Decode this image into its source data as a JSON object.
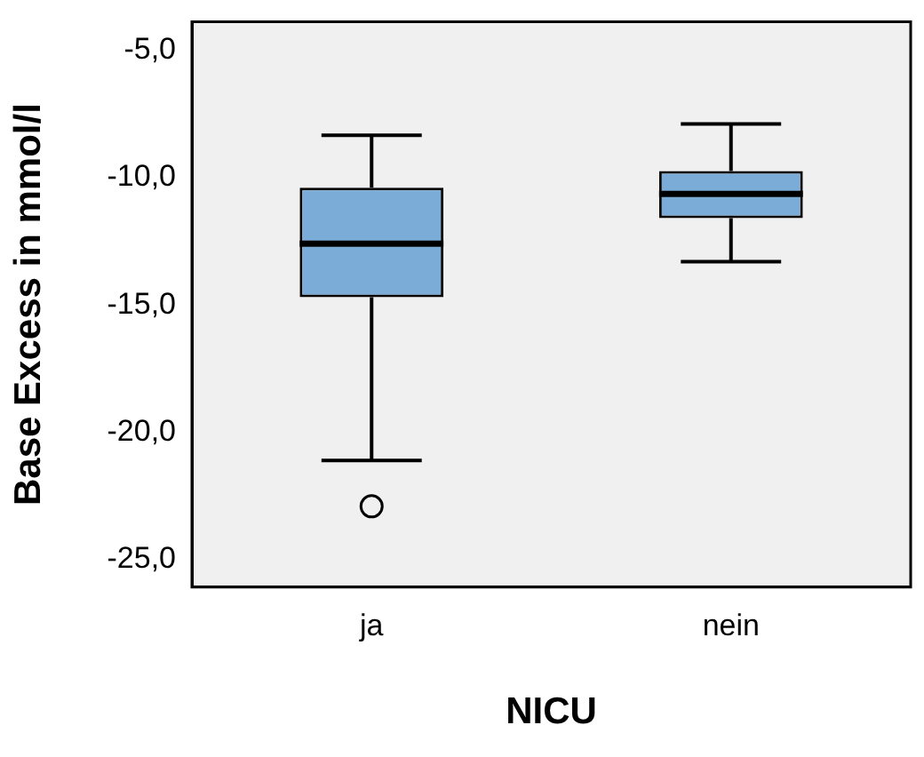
{
  "chart_data": {
    "type": "box",
    "xlabel": "NICU",
    "ylabel": "Base Excess in mmol/l",
    "categories": [
      "ja",
      "nein"
    ],
    "color": "#7bacd8",
    "grid": false,
    "legend": false,
    "ylim": [
      -26.07,
      -3.89
    ],
    "yticks": [
      {
        "value": -25,
        "label": "-25,0"
      },
      {
        "value": -20,
        "label": "-20,0"
      },
      {
        "value": -15,
        "label": "-15,0"
      },
      {
        "value": -10,
        "label": "-10,0"
      },
      {
        "value": -5,
        "label": "-5,0"
      }
    ],
    "boxes": [
      {
        "low": -21.1,
        "q1": -14.7,
        "median": -12.6,
        "q3": -10.4,
        "high": -8.35,
        "outliers": [
          -22.9
        ]
      },
      {
        "low": -13.3,
        "q1": -11.6,
        "median": -10.65,
        "q3": -9.75,
        "high": -7.9
      }
    ]
  }
}
